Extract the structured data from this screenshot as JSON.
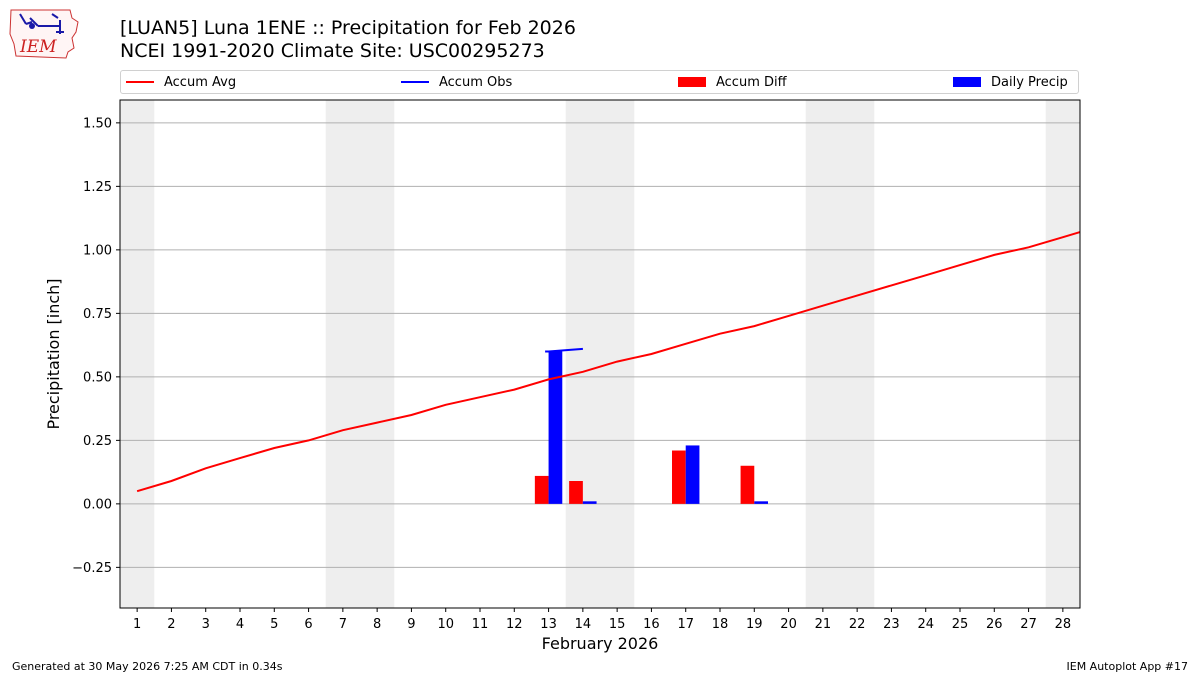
{
  "header": {
    "title_line1": "[LUAN5] Luna 1ENE :: Precipitation for Feb 2026",
    "title_line2": "NCEI 1991-2020 Climate Site: USC00295273",
    "logo_text": "IEM"
  },
  "legend": {
    "items": [
      {
        "label": "Accum Avg",
        "color": "#ff0000",
        "kind": "line"
      },
      {
        "label": "Accum Obs",
        "color": "#0000ff",
        "kind": "line"
      },
      {
        "label": "Accum Diff",
        "color": "#ff0000",
        "kind": "bar"
      },
      {
        "label": "Daily Precip",
        "color": "#0000ff",
        "kind": "bar"
      }
    ]
  },
  "footer": {
    "left": "Generated at 30 May 2026 7:25 AM CDT in 0.34s",
    "right": "IEM Autoplot App #17"
  },
  "chart_data": {
    "type": "bar",
    "title": "[LUAN5] Luna 1ENE :: Precipitation for Feb 2026",
    "subtitle": "NCEI 1991-2020 Climate Site: USC00295273",
    "xlabel": "February 2026",
    "ylabel": "Precipitation [inch]",
    "xlim": [
      0.5,
      28.5
    ],
    "ylim": [
      -0.41,
      1.59
    ],
    "yticks": [
      -0.25,
      0.0,
      0.25,
      0.5,
      0.75,
      1.0,
      1.25,
      1.5
    ],
    "ytick_labels": [
      "−0.25",
      "0.00",
      "0.25",
      "0.50",
      "0.75",
      "1.00",
      "1.25",
      "1.50"
    ],
    "xticks": [
      1,
      2,
      3,
      4,
      5,
      6,
      7,
      8,
      9,
      10,
      11,
      12,
      13,
      14,
      15,
      16,
      17,
      18,
      19,
      20,
      21,
      22,
      23,
      24,
      25,
      26,
      27,
      28
    ],
    "grid": "horizontal",
    "legend_position": "top",
    "weekend_shading": [
      [
        0.5,
        1.5
      ],
      [
        6.5,
        8.5
      ],
      [
        13.5,
        15.5
      ],
      [
        20.5,
        22.5
      ],
      [
        27.5,
        28.5
      ]
    ],
    "colors": {
      "avg": "#ff0000",
      "obs": "#0000ff",
      "diff": "#ff0000",
      "daily": "#0000ff",
      "weekend": "#eeeeee",
      "grid": "#b0b0b0"
    },
    "series": [
      {
        "name": "Accum Avg",
        "type": "line",
        "x": [
          1,
          2,
          3,
          4,
          5,
          6,
          7,
          8,
          9,
          10,
          11,
          12,
          13,
          14,
          15,
          16,
          17,
          18,
          19,
          20,
          21,
          22,
          23,
          24,
          25,
          26,
          27,
          28,
          28.5
        ],
        "values": [
          0.05,
          0.09,
          0.14,
          0.18,
          0.22,
          0.25,
          0.29,
          0.32,
          0.35,
          0.39,
          0.42,
          0.45,
          0.49,
          0.52,
          0.56,
          0.59,
          0.63,
          0.67,
          0.7,
          0.74,
          0.78,
          0.82,
          0.86,
          0.9,
          0.94,
          0.98,
          1.01,
          1.05,
          1.07
        ]
      },
      {
        "name": "Accum Obs",
        "type": "line",
        "x": [
          12.9,
          13,
          14
        ],
        "values": [
          0.6,
          0.6,
          0.61
        ]
      },
      {
        "name": "Accum Diff",
        "type": "bar",
        "x": [
          13,
          14,
          17,
          19
        ],
        "values": [
          0.11,
          0.09,
          0.21,
          0.15
        ]
      },
      {
        "name": "Daily Precip",
        "type": "bar",
        "x": [
          13,
          14,
          17,
          19
        ],
        "values": [
          0.6,
          0.01,
          0.23,
          0.01
        ]
      }
    ]
  }
}
